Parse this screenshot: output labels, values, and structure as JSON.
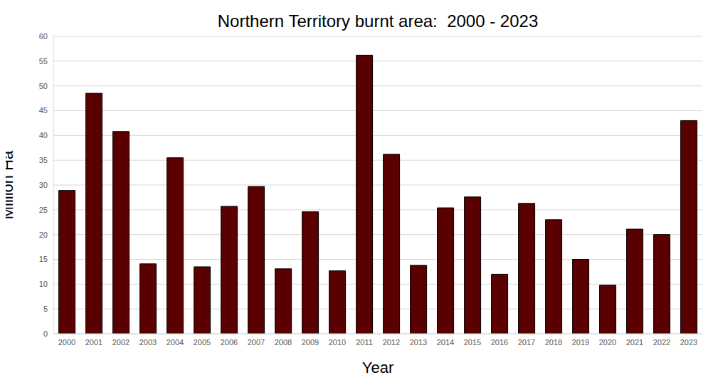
{
  "chart_data": {
    "type": "bar",
    "title": "Northern Territory burnt area:  2000 - 2023",
    "x_label": "Year",
    "y_label": "Million Ha",
    "categories": [
      "2000",
      "2001",
      "2002",
      "2003",
      "2004",
      "2005",
      "2006",
      "2007",
      "2008",
      "2009",
      "2010",
      "2011",
      "2012",
      "2013",
      "2014",
      "2015",
      "2016",
      "2017",
      "2018",
      "2019",
      "2020",
      "2021",
      "2022",
      "2023"
    ],
    "values": [
      28.9,
      48.5,
      40.8,
      14.1,
      35.5,
      13.5,
      25.7,
      29.7,
      13.1,
      24.6,
      12.7,
      56.2,
      36.2,
      13.8,
      25.4,
      27.6,
      12.0,
      26.3,
      23.0,
      15.0,
      9.8,
      21.1,
      20.0,
      43.0
    ],
    "color": "#5a0000",
    "ylim": [
      0,
      60
    ],
    "yticks": [
      0,
      5,
      10,
      15,
      20,
      25,
      30,
      35,
      40,
      45,
      50,
      55,
      60
    ],
    "grid": true
  }
}
